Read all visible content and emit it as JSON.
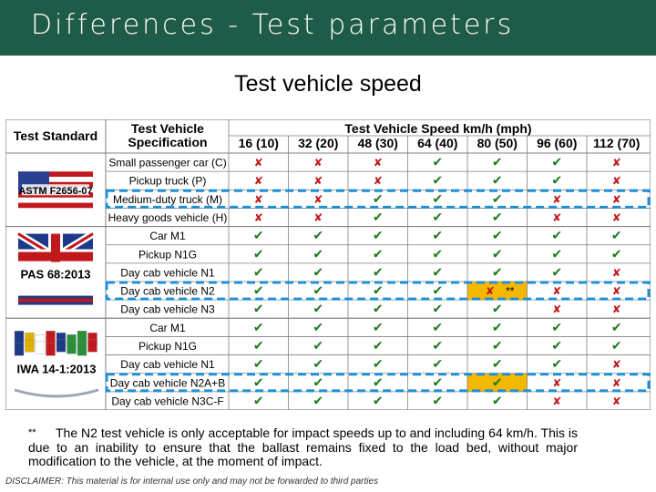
{
  "header": {
    "title": "Differences - Test parameters"
  },
  "subtitle": "Test vehicle speed",
  "table": {
    "col_standard": "Test Standard",
    "col_spec": "Test Vehicle Specification",
    "col_speed": "Test Vehicle Speed km/h (mph)",
    "speeds": [
      "16 (10)",
      "32 (20)",
      "48 (30)",
      "64 (40)",
      "80 (50)",
      "96 (60)",
      "112 (70)"
    ],
    "groups": [
      {
        "standard": "ASTM F2656-07",
        "flag": "usa",
        "rows": [
          {
            "spec": "Small passenger car (C)",
            "cells": [
              "x",
              "x",
              "x",
              "v",
              "v",
              "v",
              "x"
            ]
          },
          {
            "spec": "Pickup truck (P)",
            "cells": [
              "x",
              "x",
              "x",
              "v",
              "v",
              "v",
              "x"
            ]
          },
          {
            "spec": "Medium-duty truck (M)",
            "cells": [
              "x",
              "x",
              "v",
              "v",
              "v",
              "x",
              "x"
            ]
          },
          {
            "spec": "Heavy goods vehicle (H)",
            "cells": [
              "x",
              "x",
              "v",
              "v",
              "v",
              "x",
              "x"
            ]
          }
        ]
      },
      {
        "standard": "PAS 68:2013",
        "flag": "uk",
        "rows": [
          {
            "spec": "Car M1",
            "cells": [
              "v",
              "v",
              "v",
              "v",
              "v",
              "v",
              "v"
            ]
          },
          {
            "spec": "Pickup N1G",
            "cells": [
              "v",
              "v",
              "v",
              "v",
              "v",
              "v",
              "v"
            ]
          },
          {
            "spec": "Day cab vehicle N1",
            "cells": [
              "v",
              "v",
              "v",
              "v",
              "v",
              "v",
              "x"
            ]
          },
          {
            "spec": "Day cab vehicle N2",
            "cells": [
              "v",
              "v",
              "v",
              "v",
              "x**",
              "x",
              "x"
            ]
          },
          {
            "spec": "Day cab vehicle N3",
            "cells": [
              "v",
              "v",
              "v",
              "v",
              "v",
              "x",
              "x"
            ]
          }
        ]
      },
      {
        "standard": "IWA 14-1:2013",
        "flag": "world",
        "rows": [
          {
            "spec": "Car M1",
            "cells": [
              "v",
              "v",
              "v",
              "v",
              "v",
              "v",
              "v"
            ]
          },
          {
            "spec": "Pickup N1G",
            "cells": [
              "v",
              "v",
              "v",
              "v",
              "v",
              "v",
              "v"
            ]
          },
          {
            "spec": "Day cab vehicle N1",
            "cells": [
              "v",
              "v",
              "v",
              "v",
              "v",
              "v",
              "x"
            ]
          },
          {
            "spec": "Day cab vehicle N2A+B",
            "cells": [
              "v",
              "v",
              "v",
              "v",
              "v",
              "x",
              "x"
            ]
          },
          {
            "spec": "Day cab vehicle N3C-F",
            "cells": [
              "v",
              "v",
              "v",
              "v",
              "v",
              "x",
              "x"
            ]
          }
        ]
      }
    ],
    "highlight_color": "#f5b800",
    "dash_color": "#1e8fd6",
    "check_color": "#1e7a1e",
    "cross_color": "#c0181d"
  },
  "footnote": {
    "mark": "**",
    "text": "The N2 test vehicle is only acceptable for impact speeds up to and including 64 km/h. This is due to an inability to ensure that the ballast remains fixed to the load bed, without major modification to the vehicle, at the moment of impact."
  },
  "disclaimer": "DISCLAIMER: This material is for internal use only and may not be forwarded to third parties"
}
